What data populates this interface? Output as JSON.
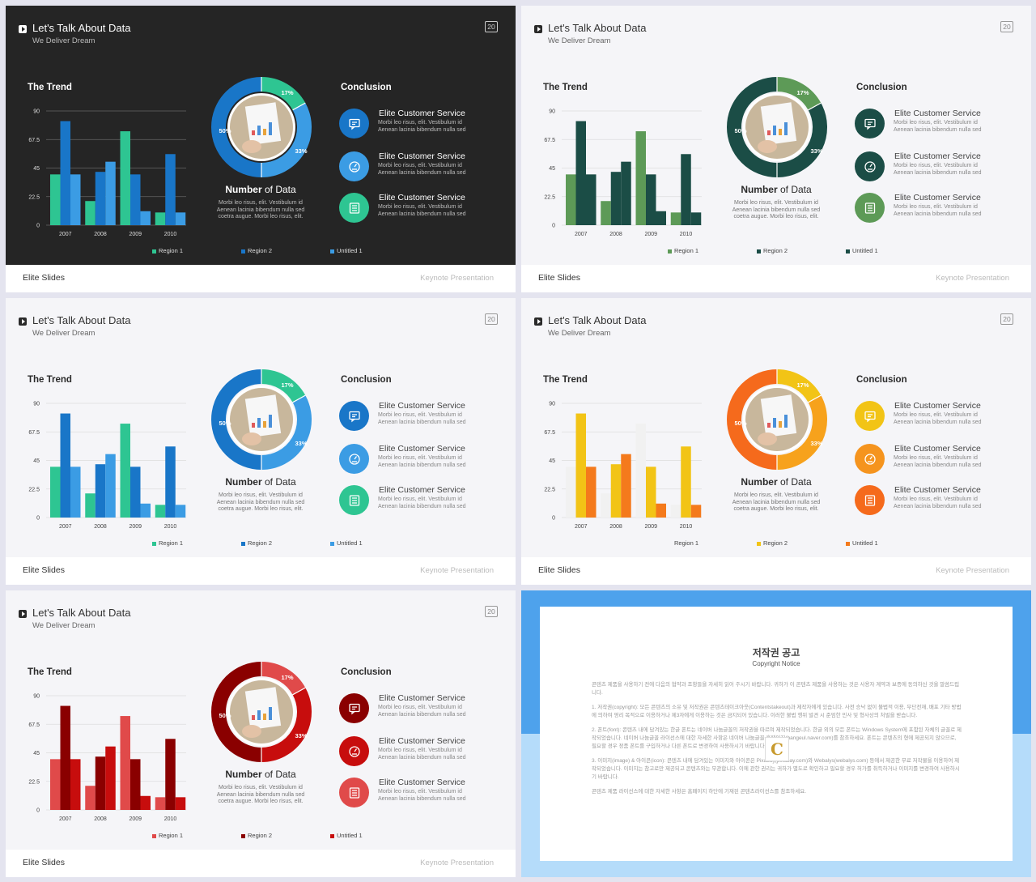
{
  "header": {
    "title": "Let's Talk About Data",
    "subtitle": "We Deliver Dream",
    "page_number": "20"
  },
  "trend_heading": "The Trend",
  "conclusion_heading": "Conclusion",
  "number_of_data": {
    "bold": "Number",
    "rest": " of Data",
    "description": [
      "Morbi leo risus, elit. Vestibulum id",
      "Aenean lacinia bibendum nulla sed",
      "coetra augue. Morbi leo risus, elit."
    ]
  },
  "conclusion_items": [
    {
      "title_bold": "Elite",
      "title_rest": " Customer Service",
      "desc": [
        "Morbi leo risus, elit. Vestibulum id",
        "Aenean lacinia bibendum nulla sed"
      ],
      "icon": "chat-icon"
    },
    {
      "title_bold": "Elite",
      "title_rest": " Customer Service",
      "desc": [
        "Morbi leo risus, elit. Vestibulum id",
        "Aenean lacinia bibendum nulla sed"
      ],
      "icon": "gauge-icon"
    },
    {
      "title_bold": "Elite",
      "title_rest": " Customer Service",
      "desc": [
        "Morbi leo risus, elit. Vestibulum id",
        "Aenean lacinia bibendum nulla sed"
      ],
      "icon": "list-icon"
    }
  ],
  "donut_labels": [
    "17%",
    "50%",
    "33%"
  ],
  "footer": {
    "brand": "Elite Slides",
    "right": "Keynote Presentation"
  },
  "chart_data": {
    "type": "bar",
    "categories": [
      "2007",
      "2008",
      "2009",
      "2010"
    ],
    "yticks": [
      "90",
      "67.5",
      "45",
      "22.5",
      "0"
    ],
    "ylim": [
      0,
      90
    ],
    "series": [
      {
        "name": "Region 1",
        "values": [
          40,
          19,
          74,
          10
        ]
      },
      {
        "name": "Region 2",
        "values": [
          82,
          42,
          40,
          56
        ]
      },
      {
        "name": "Untitled 1",
        "values": [
          40,
          50,
          11,
          10
        ]
      }
    ]
  },
  "themes": [
    {
      "name": "blue-dark",
      "dark": true,
      "colors": [
        "#2ec592",
        "#1976c8",
        "#3b9ce4"
      ],
      "c1": "#1976c8",
      "c2": "#3b9ce4",
      "c3": "#2ec592",
      "donut": [
        "#2ec592",
        "#1976c8",
        "#3b9ce4"
      ]
    },
    {
      "name": "green",
      "dark": false,
      "colors": [
        "#5d9a57",
        "#1b4d46",
        "#1b4d46"
      ],
      "c1": "#1b4d46",
      "c2": "#1b4d46",
      "c3": "#5d9a57",
      "donut": [
        "#5d9a57",
        "#1b4d46",
        "#1b4d46"
      ]
    },
    {
      "name": "blue-light",
      "dark": false,
      "colors": [
        "#2ec592",
        "#1976c8",
        "#3b9ce4"
      ],
      "c1": "#1976c8",
      "c2": "#3b9ce4",
      "c3": "#2ec592",
      "donut": [
        "#2ec592",
        "#1976c8",
        "#3b9ce4"
      ]
    },
    {
      "name": "orange",
      "dark": false,
      "colors": [
        "#f1f1f1",
        "#f2c416",
        "#f47a1c"
      ],
      "c1": "#f2c416",
      "c2": "#f5941e",
      "c3": "#f56a1c",
      "donut": [
        "#f2c416",
        "#f56a1c",
        "#f7a21c"
      ]
    },
    {
      "name": "red",
      "dark": false,
      "colors": [
        "#e04a4a",
        "#8a0000",
        "#c70d0d"
      ],
      "c1": "#8a0000",
      "c2": "#c70d0d",
      "c3": "#e04a4a",
      "donut": [
        "#e04a4a",
        "#8a0000",
        "#c70d0d"
      ]
    }
  ],
  "notice": {
    "title": "저작권 공고",
    "subtitle": "Copyright Notice",
    "paragraphs": [
      "콘텐츠 제품을 사용하기 전에 다음의 협약과 조항들을 자세히 읽어 주시기 바랍니다. 귀하가 이 콘텐츠 제품을 사용하는 것은 사용자 계약과 보증에 동의하신 것을 말씀드립니다.",
      "1. 저작권(copyright): 모든 콘텐츠의 소유 및 저작권은 콘텐츠테이크아웃(Contentstakeout)과 제작자에게 있습니다. 사전 승낙 없이 불법적 이용, 무단전재, 배포 기타 방법에 의하여 영리 목적으로 이용하거나 제3자에게 이용하는 것은 금지되어 있습니다. 이러한 불법 행위 발견 시 준엄한 민사 및 형사상의 처벌을 받습니다.",
      "2. 폰트(font): 콘텐츠 내에 담겨있는 한글 폰트는 네이버 나눔글꼴의 저작권을 따르며 제작되었습니다. 한글 외의 모든 폰트는 Windows System에 포함된 자체의 글꼴로 제작되었습니다. 네이버 나눔글꼴 라이선스에 대한 자세한 사항은 네이버 나눔글꼴 홈페이지(hangeul.naver.com)를 참조하세요. 폰트는 콘텐츠의 형에 제공되지 않으므로, 필요할 경우 정품 폰트를 구입하거나 다른 폰트로 변경하여 사용하시기 바랍니다.",
      "3. 이미지(image) & 아이콘(icon): 콘텐츠 내에 담겨있는 이미지와 아이콘은 Pixabay(pixabay.com)와 Webalys(webalys.com) 등에서 제공한 무료 저작물을 이용하여 제작되었습니다. 이미지는 참고로만 제공되고 콘텐츠와는 무관합니다. 이에 관한 권리는 귀하가 별도로 확인하고 필요할 경우 허가를 취득하거나 이미지를 변경하여 사용하시기 바랍니다.",
      "콘텐츠 제품 라이선스에 대한 자세한 사항은 홈페이지 하단에 기재된 콘텐츠라이선스를 참조하세요."
    ]
  }
}
